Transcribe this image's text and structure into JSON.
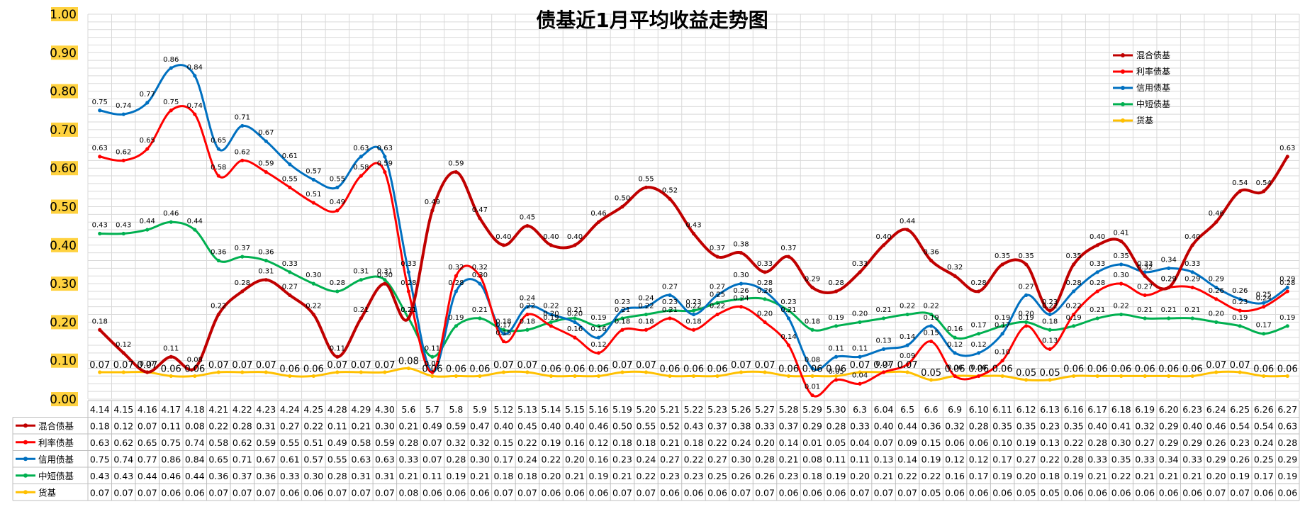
{
  "chart_data": {
    "type": "line",
    "title": "债基近1月平均收益走势图",
    "xlabel": "",
    "ylabel": "",
    "ylim": [
      0,
      1
    ],
    "yticks": [
      "0.00",
      "0.10",
      "0.20",
      "0.30",
      "0.40",
      "0.50",
      "0.60",
      "0.70",
      "0.80",
      "0.90",
      "1.00"
    ],
    "grid": true,
    "legend_position": "top-right",
    "categories": [
      "4.14",
      "4.15",
      "4.16",
      "4.17",
      "4.18",
      "4.21",
      "4.22",
      "4.23",
      "4.24",
      "4.25",
      "4.28",
      "4.29",
      "4.30",
      "5.6",
      "5.7",
      "5.8",
      "5.9",
      "5.12",
      "5.13",
      "5.14",
      "5.15",
      "5.16",
      "5.19",
      "5.20",
      "5.21",
      "5.22",
      "5.23",
      "5.26",
      "5.27",
      "5.28",
      "5.29",
      "5.30",
      "6.3",
      "6.04",
      "6.5",
      "6.6",
      "6.9",
      "6.10",
      "6.11",
      "6.12",
      "6.13",
      "6.16",
      "6.17",
      "6.18",
      "6.19",
      "6.20",
      "6.23",
      "6.24",
      "6.25",
      "6.26",
      "6.27"
    ],
    "series": [
      {
        "name": "混合债基",
        "color": "#c00000",
        "values": [
          0.18,
          0.12,
          0.07,
          0.11,
          0.08,
          0.22,
          0.28,
          0.31,
          0.27,
          0.22,
          0.11,
          0.21,
          0.3,
          0.21,
          0.49,
          0.59,
          0.47,
          0.4,
          0.45,
          0.4,
          0.4,
          0.46,
          0.5,
          0.55,
          0.52,
          0.43,
          0.37,
          0.38,
          0.33,
          0.37,
          0.29,
          0.28,
          0.33,
          0.4,
          0.44,
          0.36,
          0.32,
          0.28,
          0.35,
          0.35,
          0.23,
          0.35,
          0.4,
          0.41,
          0.32,
          0.29,
          0.4,
          0.46,
          0.54,
          0.54,
          0.63
        ]
      },
      {
        "name": "利率债基",
        "color": "#ff0000",
        "values": [
          0.63,
          0.62,
          0.65,
          0.75,
          0.74,
          0.58,
          0.62,
          0.59,
          0.55,
          0.51,
          0.49,
          0.58,
          0.59,
          0.28,
          0.07,
          0.32,
          0.32,
          0.15,
          0.22,
          0.19,
          0.16,
          0.12,
          0.18,
          0.18,
          0.21,
          0.18,
          0.22,
          0.24,
          0.2,
          0.14,
          0.01,
          0.05,
          0.04,
          0.07,
          0.09,
          0.15,
          0.06,
          0.06,
          0.1,
          0.19,
          0.13,
          0.22,
          0.28,
          0.3,
          0.27,
          0.29,
          0.29,
          0.26,
          0.23,
          0.24,
          0.28
        ]
      },
      {
        "name": "信用债基",
        "color": "#0070c0",
        "values": [
          0.75,
          0.74,
          0.77,
          0.86,
          0.84,
          0.65,
          0.71,
          0.67,
          0.61,
          0.57,
          0.55,
          0.63,
          0.63,
          0.33,
          0.07,
          0.28,
          0.3,
          0.17,
          0.24,
          0.22,
          0.2,
          0.16,
          0.23,
          0.24,
          0.27,
          0.22,
          0.27,
          0.3,
          0.28,
          0.21,
          0.08,
          0.11,
          0.11,
          0.13,
          0.14,
          0.19,
          0.12,
          0.12,
          0.17,
          0.27,
          0.22,
          0.28,
          0.33,
          0.35,
          0.33,
          0.34,
          0.33,
          0.29,
          0.26,
          0.25,
          0.29
        ]
      },
      {
        "name": "中短债基",
        "color": "#00b050",
        "values": [
          0.43,
          0.43,
          0.44,
          0.46,
          0.44,
          0.36,
          0.37,
          0.36,
          0.33,
          0.3,
          0.28,
          0.31,
          0.31,
          0.21,
          0.11,
          0.19,
          0.21,
          0.18,
          0.18,
          0.2,
          0.21,
          0.19,
          0.21,
          0.22,
          0.23,
          0.23,
          0.25,
          0.26,
          0.26,
          0.23,
          0.18,
          0.19,
          0.2,
          0.21,
          0.22,
          0.22,
          0.16,
          0.17,
          0.19,
          0.2,
          0.18,
          0.19,
          0.21,
          0.22,
          0.21,
          0.21,
          0.21,
          0.2,
          0.19,
          0.17,
          0.19
        ]
      },
      {
        "name": "货基",
        "color": "#ffc000",
        "values": [
          0.07,
          0.07,
          0.07,
          0.06,
          0.06,
          0.07,
          0.07,
          0.07,
          0.06,
          0.06,
          0.07,
          0.07,
          0.07,
          0.08,
          0.06,
          0.06,
          0.06,
          0.07,
          0.07,
          0.06,
          0.06,
          0.06,
          0.07,
          0.07,
          0.06,
          0.06,
          0.06,
          0.07,
          0.07,
          0.06,
          0.06,
          0.06,
          0.07,
          0.07,
          0.07,
          0.05,
          0.06,
          0.06,
          0.06,
          0.05,
          0.05,
          0.06,
          0.06,
          0.06,
          0.06,
          0.06,
          0.06,
          0.07,
          0.07,
          0.06,
          0.06
        ]
      }
    ]
  }
}
